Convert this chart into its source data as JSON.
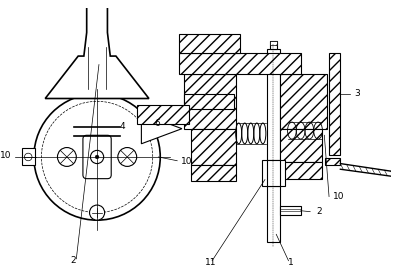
{
  "bg_color": "#ffffff",
  "line_color": "#000000",
  "fig_w": 4.1,
  "fig_h": 2.8,
  "dpi": 100,
  "lw": 0.8,
  "lw2": 1.2,
  "fontsize": 6.5
}
